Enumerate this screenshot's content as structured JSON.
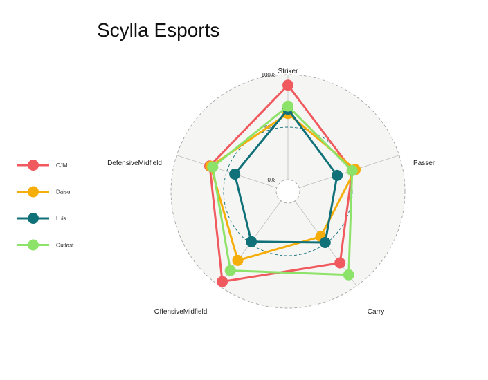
{
  "chart_data": {
    "type": "radar",
    "title": "Scylla Esports",
    "axes": [
      "Striker",
      "Passer",
      "Carry",
      "OffensiveMidfield",
      "DefensiveMidfield"
    ],
    "grid_labels": [
      "0%",
      "50%",
      "100%"
    ],
    "range": [
      0,
      1
    ],
    "legend_position": "left",
    "series": [
      {
        "name": "CJM",
        "color": "#F05A5F",
        "values": [
          0.9,
          0.53,
          0.73,
          0.95,
          0.67
        ]
      },
      {
        "name": "Daisu",
        "color": "#F5AD0A",
        "values": [
          0.63,
          0.56,
          0.42,
          0.7,
          0.66
        ]
      },
      {
        "name": "Luis",
        "color": "#117179",
        "values": [
          0.67,
          0.38,
          0.49,
          0.48,
          0.42
        ]
      },
      {
        "name": "Outlast",
        "color": "#8DE26A",
        "values": [
          0.7,
          0.53,
          0.87,
          0.82,
          0.64
        ]
      }
    ]
  }
}
